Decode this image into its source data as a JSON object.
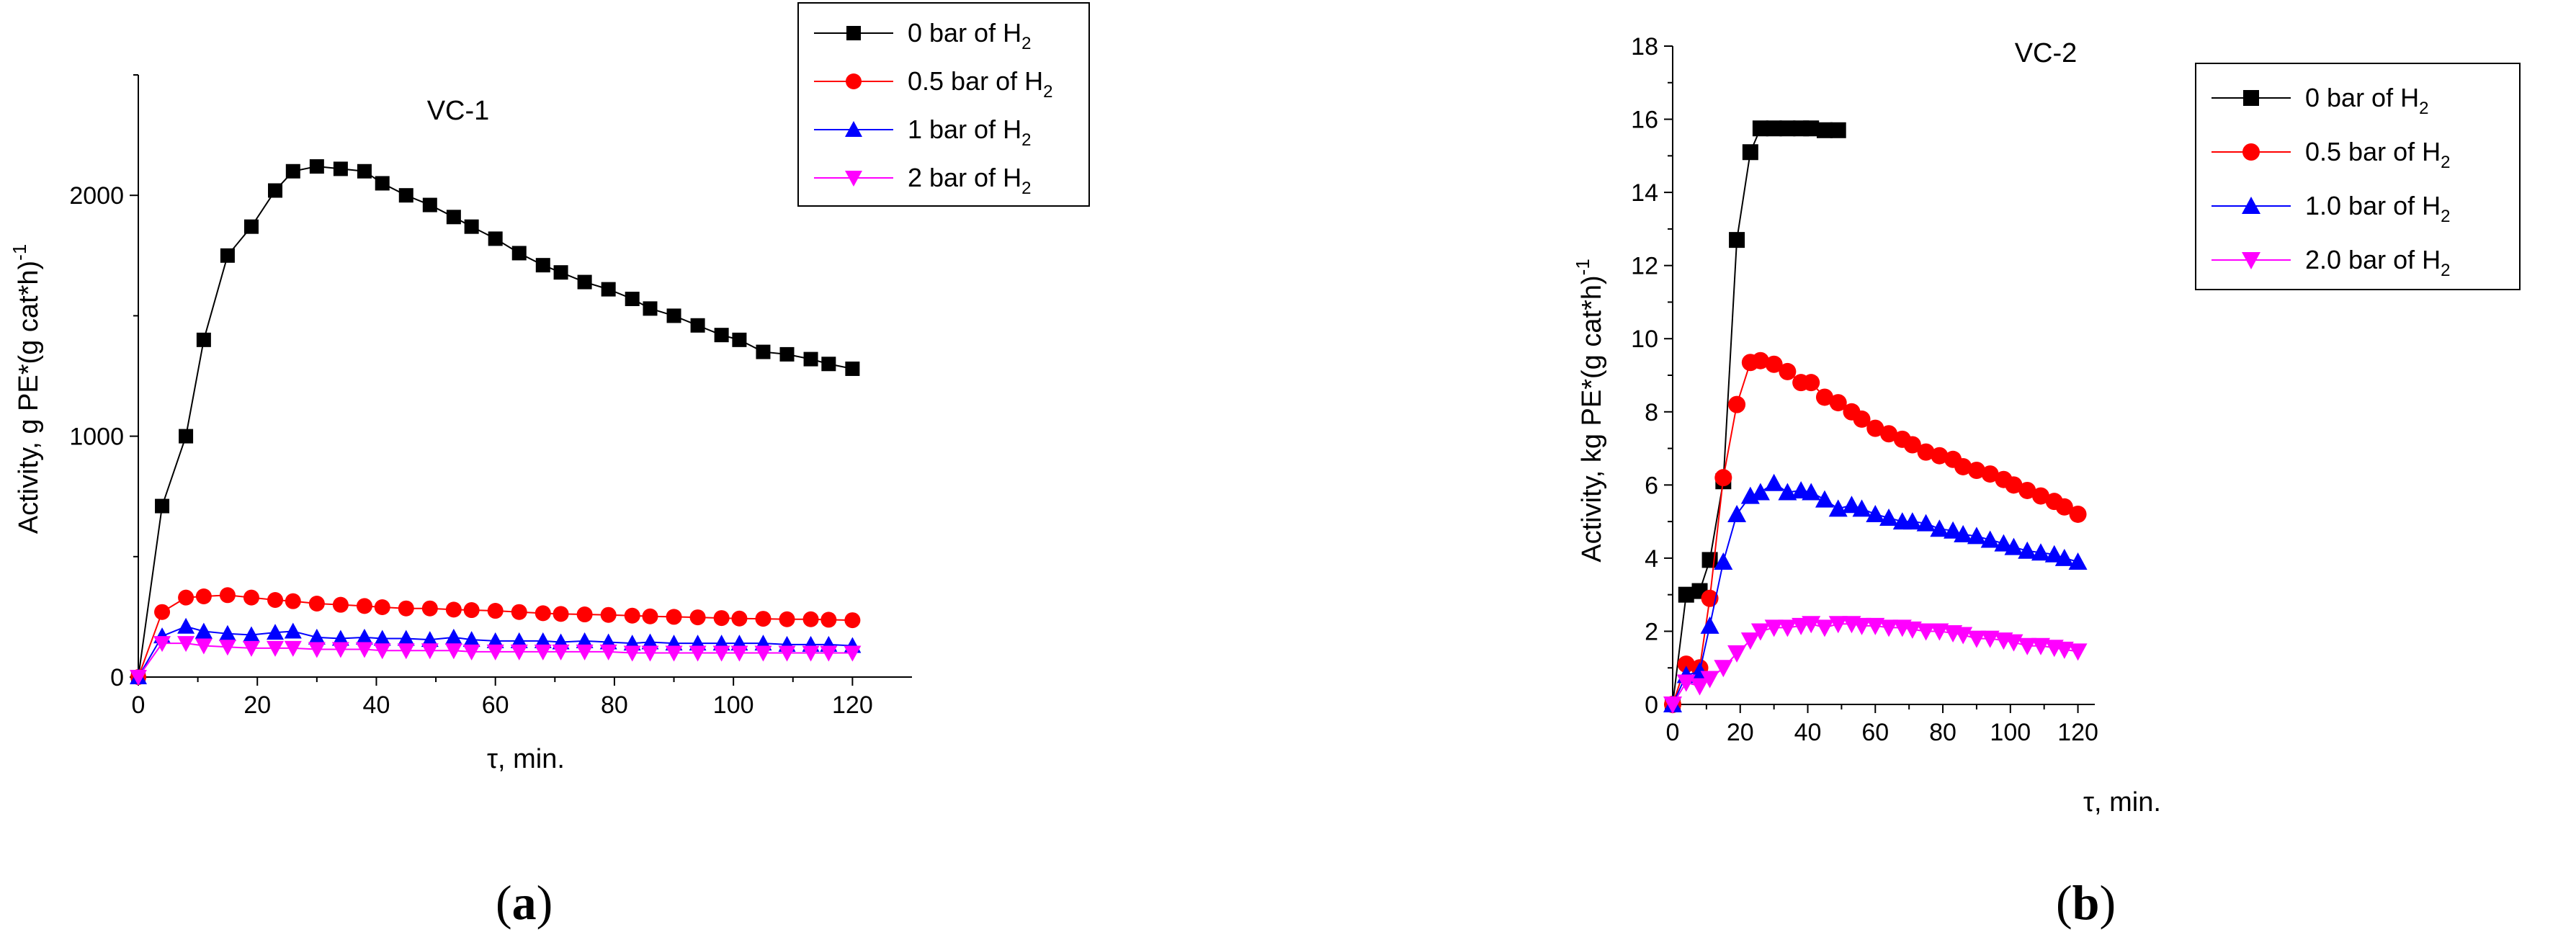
{
  "chart_data": [
    {
      "type": "line",
      "panel_label": "a",
      "title": "VC-1",
      "xlabel": "τ, min.",
      "ylabel": "Activity, g PE*(g cat*h)",
      "ylabel_sup": "-1",
      "xlim": [
        0,
        130
      ],
      "ylim": [
        0,
        2500
      ],
      "xticks": [
        0,
        20,
        40,
        60,
        80,
        100,
        120
      ],
      "yticks": [
        0,
        1000,
        2000
      ],
      "grid": false,
      "legend_position": "top-right",
      "series": [
        {
          "name": "0 bar of H",
          "name_sub": "2",
          "color": "#000000",
          "marker": "square",
          "x": [
            0,
            4,
            8,
            11,
            15,
            19,
            23,
            26,
            30,
            34,
            38,
            41,
            45,
            49,
            53,
            56,
            60,
            64,
            68,
            71,
            75,
            79,
            83,
            86,
            90,
            94,
            98,
            101,
            105,
            109,
            113,
            116,
            120
          ],
          "y": [
            0,
            710,
            1000,
            1400,
            1750,
            1870,
            2020,
            2100,
            2120,
            2110,
            2100,
            2050,
            2000,
            1960,
            1910,
            1870,
            1820,
            1760,
            1710,
            1680,
            1640,
            1610,
            1570,
            1530,
            1500,
            1460,
            1420,
            1400,
            1350,
            1340,
            1320,
            1300,
            1280
          ]
        },
        {
          "name": "0.5 bar of H",
          "name_sub": "2",
          "color": "#ff0000",
          "marker": "circle",
          "x": [
            0,
            4,
            8,
            11,
            15,
            19,
            23,
            26,
            30,
            34,
            38,
            41,
            45,
            49,
            53,
            56,
            60,
            64,
            68,
            71,
            75,
            79,
            83,
            86,
            90,
            94,
            98,
            101,
            105,
            109,
            113,
            116,
            120
          ],
          "y": [
            0,
            270,
            330,
            335,
            340,
            330,
            320,
            315,
            305,
            300,
            295,
            290,
            285,
            285,
            280,
            278,
            275,
            270,
            265,
            262,
            260,
            258,
            255,
            252,
            250,
            248,
            245,
            243,
            242,
            240,
            240,
            238,
            236
          ]
        },
        {
          "name": "1 bar of H",
          "name_sub": "2",
          "color": "#0000ff",
          "marker": "triangle-up",
          "x": [
            0,
            4,
            8,
            11,
            15,
            19,
            23,
            26,
            30,
            34,
            38,
            41,
            45,
            49,
            53,
            56,
            60,
            64,
            68,
            71,
            75,
            79,
            83,
            86,
            90,
            94,
            98,
            101,
            105,
            109,
            113,
            116,
            120
          ],
          "y": [
            0,
            170,
            210,
            190,
            180,
            175,
            185,
            190,
            165,
            160,
            165,
            160,
            160,
            155,
            165,
            155,
            150,
            150,
            150,
            145,
            150,
            145,
            140,
            145,
            140,
            140,
            140,
            140,
            140,
            135,
            135,
            135,
            130
          ]
        },
        {
          "name": "2 bar of H",
          "name_sub": "2",
          "color": "#ff00ff",
          "marker": "triangle-down",
          "x": [
            0,
            4,
            8,
            11,
            15,
            19,
            23,
            26,
            30,
            34,
            38,
            41,
            45,
            49,
            53,
            56,
            60,
            64,
            68,
            71,
            75,
            79,
            83,
            86,
            90,
            94,
            98,
            101,
            105,
            109,
            113,
            116,
            120
          ],
          "y": [
            0,
            140,
            140,
            130,
            125,
            120,
            120,
            120,
            115,
            115,
            115,
            110,
            110,
            110,
            110,
            105,
            105,
            105,
            105,
            105,
            105,
            105,
            100,
            100,
            100,
            100,
            100,
            100,
            100,
            100,
            100,
            100,
            100
          ]
        }
      ]
    },
    {
      "type": "line",
      "panel_label": "b",
      "title": "VC-2",
      "xlabel": "τ, min.",
      "ylabel": "Activity, kg PE*(g cat*h)",
      "ylabel_sup": "-1",
      "xlim": [
        0,
        125
      ],
      "ylim": [
        0,
        18
      ],
      "xticks": [
        0,
        20,
        40,
        60,
        80,
        100,
        120
      ],
      "yticks": [
        0,
        2,
        4,
        6,
        8,
        10,
        12,
        14,
        16,
        18
      ],
      "grid": false,
      "legend_position": "top-right",
      "series": [
        {
          "name": "0 bar of H",
          "name_sub": "2",
          "color": "#000000",
          "marker": "square",
          "x": [
            0,
            4,
            8,
            11,
            15,
            19,
            23,
            26,
            30,
            34,
            38,
            41,
            45,
            49
          ],
          "y": [
            0,
            3.0,
            3.1,
            3.95,
            6.1,
            12.7,
            15.1,
            15.75,
            15.75,
            15.75,
            15.75,
            15.75,
            15.7,
            15.7
          ]
        },
        {
          "name": "0.5 bar of H",
          "name_sub": "2",
          "color": "#ff0000",
          "marker": "circle",
          "x": [
            0,
            4,
            8,
            11,
            15,
            19,
            23,
            26,
            30,
            34,
            38,
            41,
            45,
            49,
            53,
            56,
            60,
            64,
            68,
            71,
            75,
            79,
            83,
            86,
            90,
            94,
            98,
            101,
            105,
            109,
            113,
            116,
            120
          ],
          "y": [
            0,
            1.1,
            1.0,
            2.9,
            6.2,
            8.2,
            9.35,
            9.4,
            9.3,
            9.1,
            8.8,
            8.8,
            8.4,
            8.25,
            8.0,
            7.8,
            7.55,
            7.4,
            7.25,
            7.1,
            6.9,
            6.8,
            6.7,
            6.5,
            6.4,
            6.3,
            6.15,
            6.0,
            5.85,
            5.7,
            5.55,
            5.4,
            5.2
          ]
        },
        {
          "name": "1.0 bar of H",
          "name_sub": "2",
          "color": "#0000ff",
          "marker": "triangle-up",
          "x": [
            0,
            4,
            8,
            11,
            15,
            19,
            23,
            26,
            30,
            34,
            38,
            41,
            45,
            49,
            53,
            56,
            60,
            64,
            68,
            71,
            75,
            79,
            83,
            86,
            90,
            94,
            98,
            101,
            105,
            109,
            113,
            116,
            120
          ],
          "y": [
            0,
            0.8,
            0.9,
            2.15,
            3.9,
            5.2,
            5.7,
            5.8,
            6.05,
            5.8,
            5.85,
            5.8,
            5.6,
            5.35,
            5.45,
            5.35,
            5.2,
            5.1,
            5.0,
            5.0,
            4.95,
            4.8,
            4.75,
            4.65,
            4.6,
            4.5,
            4.4,
            4.3,
            4.2,
            4.15,
            4.1,
            4.0,
            3.9
          ]
        },
        {
          "name": "2.0 bar of H",
          "name_sub": "2",
          "color": "#ff00ff",
          "marker": "triangle-down",
          "x": [
            0,
            4,
            8,
            11,
            15,
            19,
            23,
            26,
            30,
            34,
            38,
            41,
            45,
            49,
            53,
            56,
            60,
            64,
            68,
            71,
            75,
            79,
            83,
            86,
            90,
            94,
            98,
            101,
            105,
            109,
            113,
            116,
            120
          ],
          "y": [
            0,
            0.6,
            0.5,
            0.7,
            1.0,
            1.4,
            1.75,
            2.0,
            2.1,
            2.1,
            2.15,
            2.2,
            2.1,
            2.2,
            2.2,
            2.15,
            2.15,
            2.1,
            2.1,
            2.05,
            2.0,
            2.0,
            1.95,
            1.9,
            1.8,
            1.8,
            1.75,
            1.7,
            1.6,
            1.6,
            1.55,
            1.5,
            1.45
          ]
        }
      ]
    }
  ]
}
